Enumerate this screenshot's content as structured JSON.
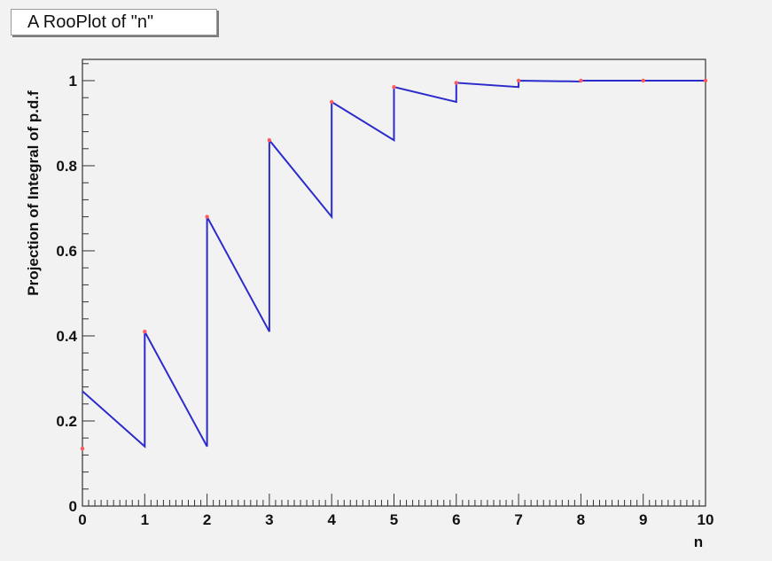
{
  "chart_data": {
    "type": "line",
    "title": "A RooPlot of \"n\"",
    "xlabel": "n",
    "ylabel": "Projection of Integral of p.d.f",
    "xlim": [
      0,
      10
    ],
    "ylim": [
      0,
      1.05
    ],
    "x_ticks": [
      0,
      1,
      2,
      3,
      4,
      5,
      6,
      7,
      8,
      9,
      10
    ],
    "y_ticks": [
      0,
      0.2,
      0.4,
      0.6,
      0.8,
      1
    ],
    "y_tick_labels": [
      "0",
      "0.2",
      "0.4",
      "0.6",
      "0.8",
      "1"
    ],
    "grid": false,
    "legend": "none",
    "colors": {
      "curve": "#2b2bcc",
      "points": "#ff5a5a",
      "frame": "#333333",
      "plot_background": "#f2f2f2"
    },
    "series": [
      {
        "style": "line",
        "x": [
          0,
          1,
          1,
          2,
          2,
          3,
          3,
          4,
          4,
          5,
          5,
          6,
          6,
          7,
          7,
          8,
          8,
          9,
          9,
          10
        ],
        "y": [
          0.27,
          0.14,
          0.41,
          0.14,
          0.68,
          0.41,
          0.86,
          0.68,
          0.95,
          0.86,
          0.985,
          0.95,
          0.995,
          0.985,
          1.0,
          0.998,
          1.0,
          1.0,
          1.0,
          1.0
        ]
      },
      {
        "style": "points",
        "x": [
          0,
          1,
          2,
          3,
          4,
          5,
          6,
          7,
          8,
          9,
          10
        ],
        "y": [
          0.135,
          0.41,
          0.68,
          0.86,
          0.95,
          0.985,
          0.995,
          1.0,
          1.0,
          1.0,
          1.0
        ]
      }
    ]
  }
}
